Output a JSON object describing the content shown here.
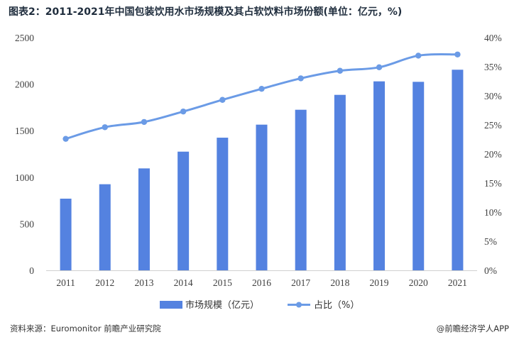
{
  "title": "图表2：2011-2021年中国包装饮用水市场规模及其占软饮料市场份额(单位：亿元，%)",
  "source": "资料来源：Euromonitor 前瞻产业研究院",
  "brand": "@前瞻经济学人APP",
  "colors": {
    "bar": "#5482e0",
    "line": "#6b9be6"
  },
  "chart_data": {
    "type": "bar",
    "categories": [
      "2011",
      "2012",
      "2013",
      "2014",
      "2015",
      "2016",
      "2017",
      "2018",
      "2019",
      "2020",
      "2021"
    ],
    "series": [
      {
        "name": "市场规模（亿元）",
        "type": "bar",
        "axis": "left",
        "values": [
          770,
          925,
          1095,
          1275,
          1425,
          1565,
          1725,
          1885,
          2030,
          2025,
          2155
        ]
      },
      {
        "name": "占比（%）",
        "type": "line",
        "axis": "right",
        "values": [
          22.6,
          24.6,
          25.5,
          27.3,
          29.3,
          31.2,
          33.0,
          34.3,
          34.9,
          36.9,
          37.1
        ]
      }
    ],
    "y_left": {
      "ticks": [
        "0",
        "500",
        "1000",
        "1500",
        "2000",
        "2500"
      ],
      "ylim": [
        0,
        2500
      ]
    },
    "y_right": {
      "ticks": [
        "0%",
        "5%",
        "10%",
        "15%",
        "20%",
        "25%",
        "30%",
        "35%",
        "40%"
      ],
      "ylim": [
        0,
        40
      ]
    },
    "legend": "bottom-center",
    "grid": false
  }
}
